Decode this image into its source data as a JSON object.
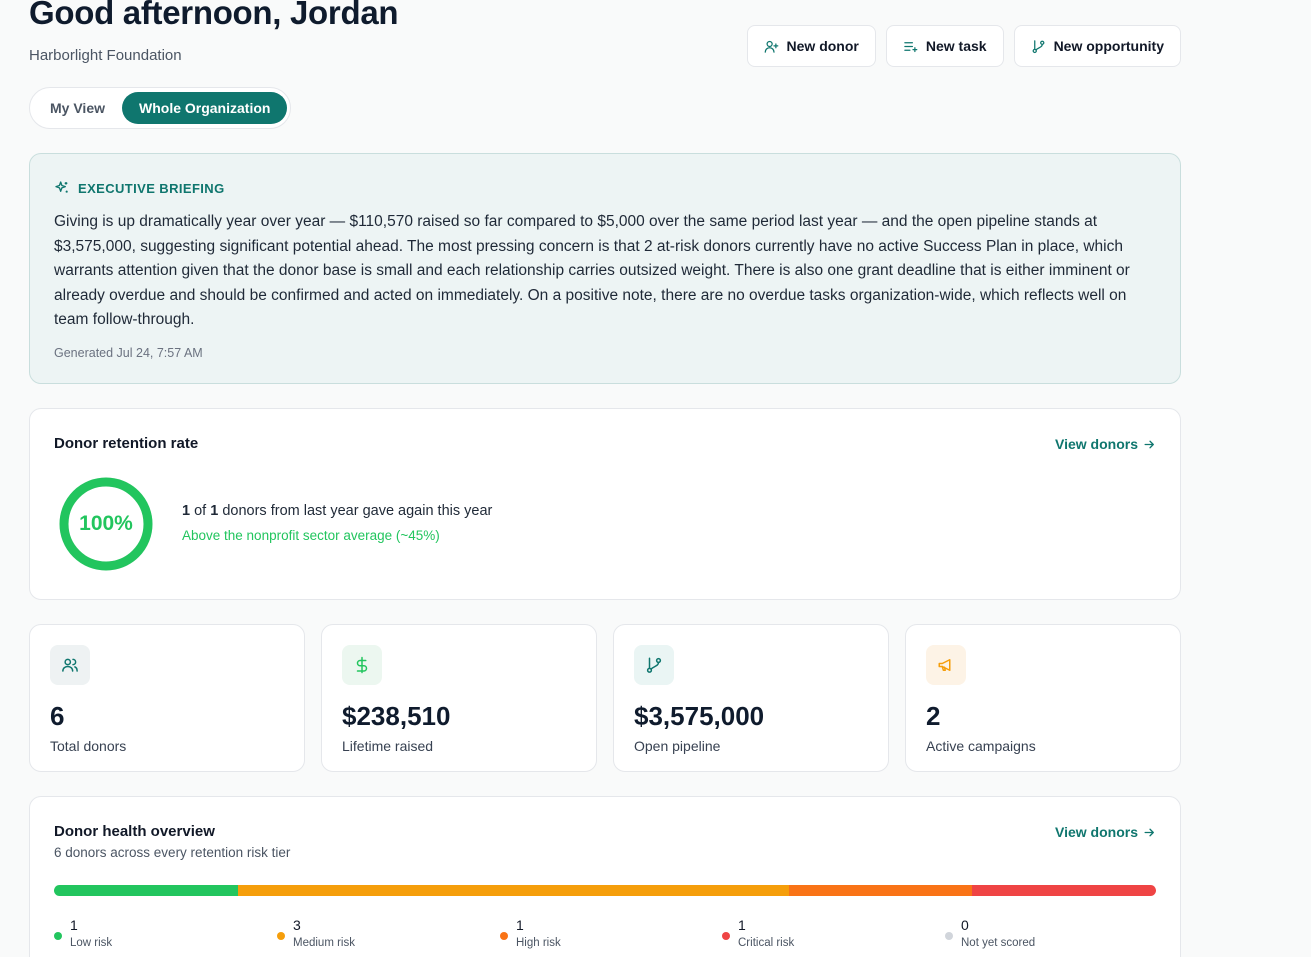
{
  "header": {
    "greeting": "Good afternoon, Jordan",
    "org_name": "Harborlight Foundation"
  },
  "actions": [
    {
      "label": "New donor",
      "icon": "user-plus-icon"
    },
    {
      "label": "New task",
      "icon": "list-plus-icon"
    },
    {
      "label": "New opportunity",
      "icon": "git-branch-icon"
    }
  ],
  "view_toggle": {
    "options": [
      "My View",
      "Whole Organization"
    ],
    "selected": "Whole Organization"
  },
  "briefing": {
    "title": "EXECUTIVE BRIEFING",
    "icon": "sparkles-icon",
    "text": "Giving is up dramatically year over year — $110,570 raised so far compared to $5,000 over the same period last year — and the open pipeline stands at $3,575,000, suggesting significant potential ahead. The most pressing concern is that 2 at-risk donors currently have no active Success Plan in place, which warrants attention given that the donor base is small and each relationship carries outsized weight. There is also one grant deadline that is either imminent or already overdue and should be confirmed and acted on immediately. On a positive note, there are no overdue tasks organization-wide, which reflects well on team follow-through.",
    "generated": "Generated Jul 24, 7:57 AM"
  },
  "retention": {
    "title": "Donor retention rate",
    "link": "View donors",
    "percent_label": "100%",
    "rate": 1.0,
    "retained": "1",
    "of_text": "of",
    "total": "1",
    "line_suffix": "donors from last year gave again this year",
    "note": "Above the nonprofit sector average (~45%)",
    "color": "#22c55e"
  },
  "stats": [
    {
      "value": "6",
      "label": "Total donors",
      "icon": "users-icon",
      "color": "#0f766e",
      "bg": "#eef2f3"
    },
    {
      "value": "$238,510",
      "label": "Lifetime raised",
      "icon": "dollar-icon",
      "color": "#22c55e",
      "bg": "#ecf7f0"
    },
    {
      "value": "$3,575,000",
      "label": "Open pipeline",
      "icon": "git-branch-icon",
      "color": "#0f766e",
      "bg": "#eaf5f4"
    },
    {
      "value": "2",
      "label": "Active campaigns",
      "icon": "megaphone-icon",
      "color": "#f59e0b",
      "bg": "#fdf3e6"
    }
  ],
  "health": {
    "title": "Donor health overview",
    "subtitle": "6 donors across every retention risk tier",
    "link": "View donors",
    "tiers": [
      {
        "count": "1",
        "label": "Low risk",
        "value": 1,
        "color": "#22c55e"
      },
      {
        "count": "3",
        "label": "Medium risk",
        "value": 3,
        "color": "#f59e0b"
      },
      {
        "count": "1",
        "label": "High risk",
        "value": 1,
        "color": "#f97316"
      },
      {
        "count": "1",
        "label": "Critical risk",
        "value": 1,
        "color": "#ef4444"
      },
      {
        "count": "0",
        "label": "Not yet scored",
        "value": 0,
        "color": "#d1d5db"
      }
    ]
  }
}
